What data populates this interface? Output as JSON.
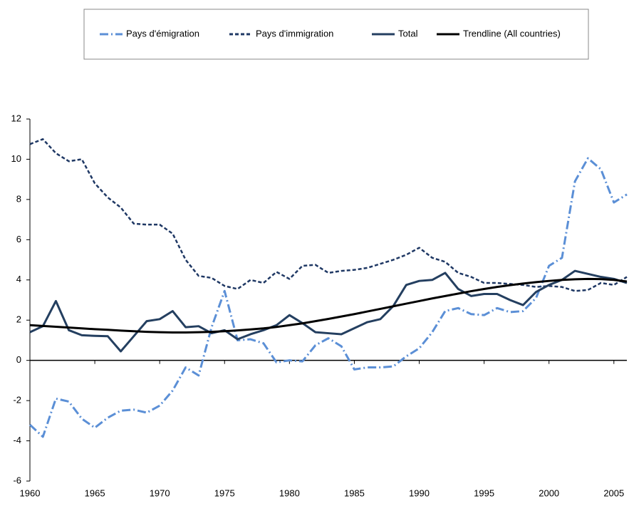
{
  "chart_data": {
    "type": "line",
    "x": [
      1960,
      1961,
      1962,
      1963,
      1964,
      1965,
      1966,
      1967,
      1968,
      1969,
      1970,
      1971,
      1972,
      1973,
      1974,
      1975,
      1976,
      1977,
      1978,
      1979,
      1980,
      1981,
      1982,
      1983,
      1984,
      1985,
      1986,
      1987,
      1988,
      1989,
      1990,
      1991,
      1992,
      1993,
      1994,
      1995,
      1996,
      1997,
      1998,
      1999,
      2000,
      2001,
      2002,
      2003,
      2004,
      2005,
      2006
    ],
    "series": [
      {
        "name": "Pays d'émigration",
        "color": "#5b8fd6",
        "style": "dash-dot",
        "values": [
          -3.2,
          -3.8,
          -1.9,
          -2.05,
          -2.9,
          -3.35,
          -2.85,
          -2.5,
          -2.45,
          -2.6,
          -2.25,
          -1.5,
          -0.35,
          -0.75,
          1.65,
          3.45,
          1.0,
          1.05,
          0.85,
          -0.1,
          0.0,
          -0.05,
          0.75,
          1.1,
          0.7,
          -0.45,
          -0.35,
          -0.35,
          -0.3,
          0.2,
          0.6,
          1.4,
          2.45,
          2.6,
          2.3,
          2.25,
          2.6,
          2.4,
          2.45,
          3.1,
          4.7,
          5.1,
          8.9,
          10.05,
          9.5,
          7.85,
          8.25
        ]
      },
      {
        "name": "Pays d'immigration",
        "color": "#1f3864",
        "style": "dash",
        "values": [
          10.75,
          11.0,
          10.3,
          9.9,
          10.0,
          8.8,
          8.1,
          7.6,
          6.8,
          6.75,
          6.75,
          6.3,
          5.0,
          4.2,
          4.1,
          3.7,
          3.55,
          4.0,
          3.85,
          4.4,
          4.05,
          4.7,
          4.75,
          4.35,
          4.45,
          4.5,
          4.6,
          4.8,
          5.0,
          5.25,
          5.6,
          5.1,
          4.9,
          4.35,
          4.15,
          3.85,
          3.85,
          3.8,
          3.75,
          3.65,
          3.7,
          3.65,
          3.45,
          3.5,
          3.85,
          3.75,
          4.15
        ]
      },
      {
        "name": "Total",
        "color": "#243f60",
        "style": "solid",
        "values": [
          1.4,
          1.7,
          2.95,
          1.5,
          1.25,
          1.22,
          1.2,
          0.45,
          1.2,
          1.95,
          2.05,
          2.45,
          1.65,
          1.7,
          1.35,
          1.5,
          1.05,
          1.3,
          1.5,
          1.75,
          2.25,
          1.85,
          1.4,
          1.35,
          1.3,
          1.6,
          1.9,
          2.05,
          2.7,
          3.75,
          3.95,
          4.0,
          4.35,
          3.55,
          3.2,
          3.3,
          3.3,
          3.0,
          2.75,
          3.4,
          3.75,
          4.0,
          4.45,
          4.3,
          4.15,
          4.05,
          3.85
        ]
      },
      {
        "name": "Trendline (All countries)",
        "color": "#000000",
        "style": "solid",
        "values": [
          1.75,
          1.71,
          1.67,
          1.63,
          1.59,
          1.55,
          1.52,
          1.48,
          1.45,
          1.42,
          1.4,
          1.39,
          1.39,
          1.4,
          1.42,
          1.45,
          1.49,
          1.54,
          1.59,
          1.66,
          1.75,
          1.84,
          1.95,
          2.06,
          2.18,
          2.3,
          2.43,
          2.56,
          2.69,
          2.82,
          2.95,
          3.08,
          3.2,
          3.32,
          3.44,
          3.55,
          3.65,
          3.74,
          3.82,
          3.89,
          3.95,
          4.0,
          4.03,
          4.05,
          4.04,
          4.0,
          3.92
        ]
      }
    ],
    "xlim": [
      1960,
      2006
    ],
    "xticks": [
      1960,
      1965,
      1970,
      1975,
      1980,
      1985,
      1990,
      1995,
      2000,
      2005
    ],
    "ylim": [
      -6,
      12
    ],
    "yticks": [
      -6,
      -4,
      -2,
      0,
      2,
      4,
      6,
      8,
      10,
      12
    ],
    "legend": "top",
    "grid": false
  }
}
